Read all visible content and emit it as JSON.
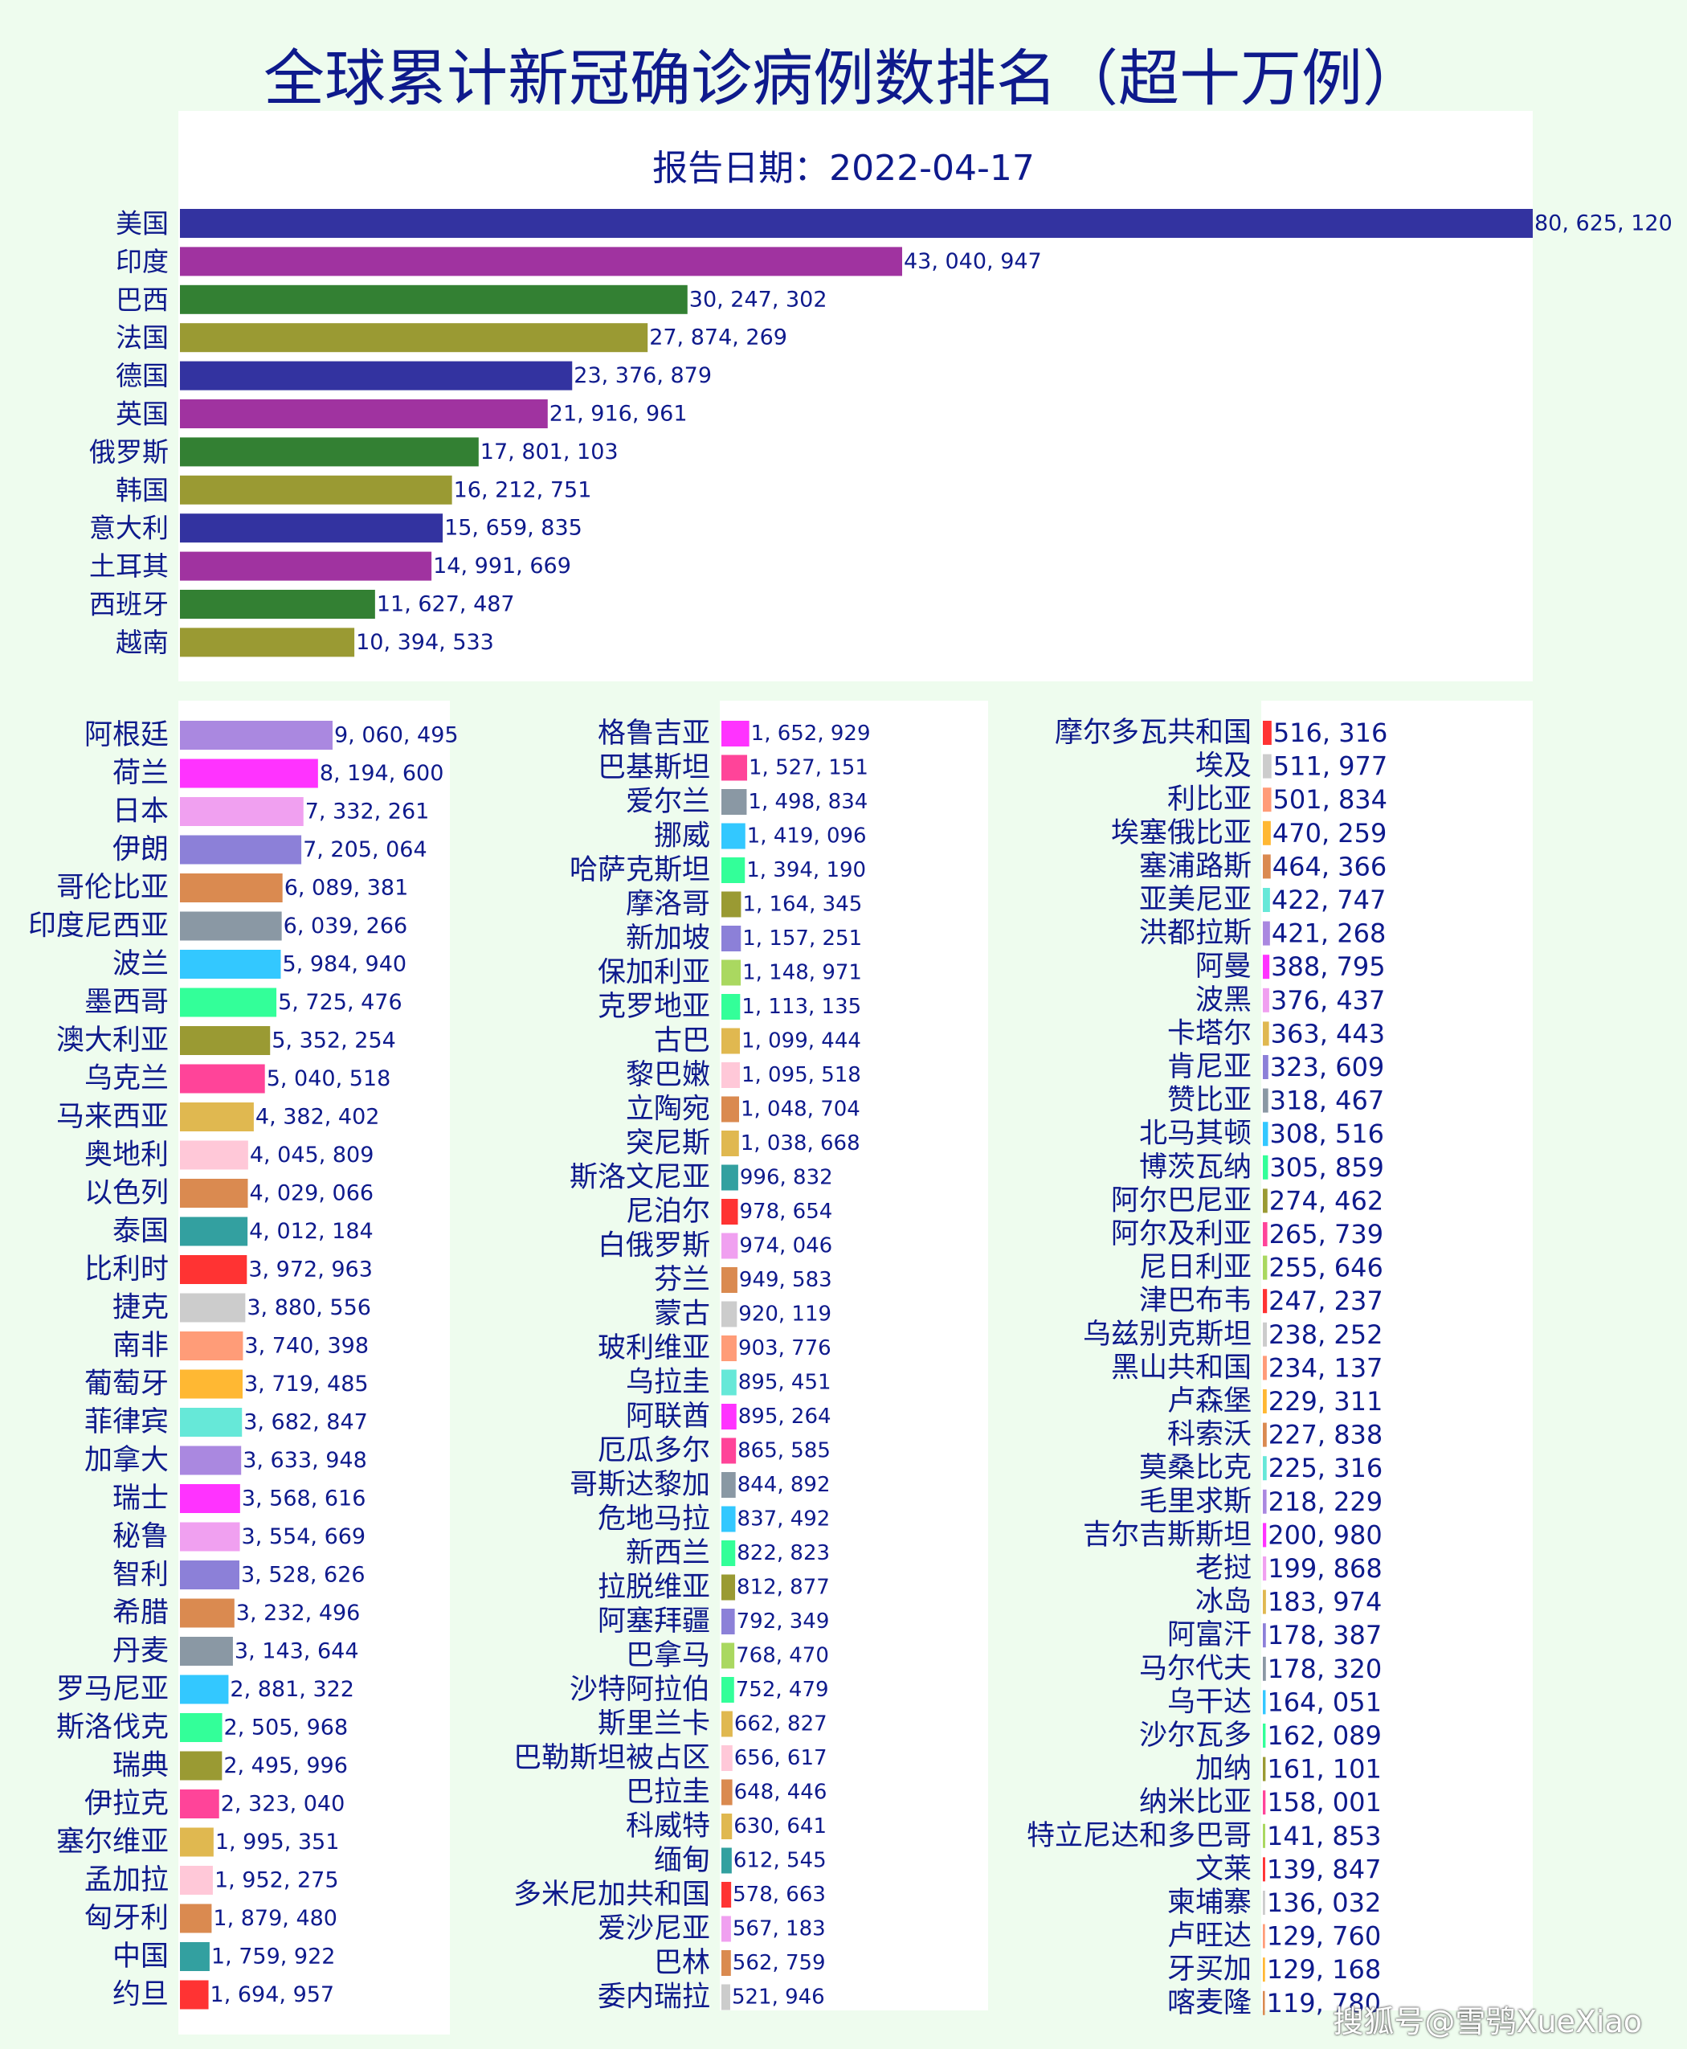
{
  "chart_data": {
    "type": "bar",
    "orientation": "horizontal",
    "title": "全球累计新冠确诊病例数排名（超十万例）",
    "subtitle": "报告日期：2022-04-17",
    "watermark": "搜狐号@雪鸮XueXiao",
    "panels": [
      {
        "name": "top",
        "xlim": [
          0,
          80625120
        ],
        "colors": [
          "#3333a0",
          "#a033a0",
          "#338033",
          "#9a9a33"
        ],
        "categories": [
          "美国",
          "印度",
          "巴西",
          "法国",
          "德国",
          "英国",
          "俄罗斯",
          "韩国",
          "意大利",
          "土耳其",
          "西班牙",
          "越南"
        ],
        "values": [
          80625120,
          43040947,
          30247302,
          27874269,
          23376879,
          21916961,
          17801103,
          16212751,
          15659835,
          14991669,
          11627487,
          10394533
        ],
        "value_labels": [
          "80, 625, 120",
          "43, 040, 947",
          "30, 247, 302",
          "27, 874, 269",
          "23, 376, 879",
          "21, 916, 961",
          "17, 801, 103",
          "16, 212, 751",
          "15, 659, 835",
          "14, 991, 669",
          "11, 627, 487",
          "10, 394, 533"
        ]
      },
      {
        "name": "left",
        "xlim": [
          0,
          9060495
        ],
        "colors": [
          "#aa88e0",
          "#ff33ff",
          "#f0a0f0",
          "#8c80d8",
          "#da8a50",
          "#8a98a4",
          "#33c8ff",
          "#33ff99",
          "#9a9a33",
          "#ff4499",
          "#e0b850",
          "#ffc8d8",
          "#da8a50",
          "#33a0a0",
          "#ff3333",
          "#cccccc",
          "#ff9c78",
          "#ffb833",
          "#66e8d8"
        ],
        "categories": [
          "阿根廷",
          "荷兰",
          "日本",
          "伊朗",
          "哥伦比亚",
          "印度尼西亚",
          "波兰",
          "墨西哥",
          "澳大利亚",
          "乌克兰",
          "马来西亚",
          "奥地利",
          "以色列",
          "泰国",
          "比利时",
          "捷克",
          "南非",
          "葡萄牙",
          "菲律宾",
          "加拿大",
          "瑞士",
          "秘鲁",
          "智利",
          "希腊",
          "丹麦",
          "罗马尼亚",
          "斯洛伐克",
          "瑞典",
          "伊拉克",
          "塞尔维亚",
          "孟加拉",
          "匈牙利",
          "中国",
          "约旦"
        ],
        "values": [
          9060495,
          8194600,
          7332261,
          7205064,
          6089381,
          6039266,
          5984940,
          5725476,
          5352254,
          5040518,
          4382402,
          4045809,
          4029066,
          4012184,
          3972963,
          3880556,
          3740398,
          3719485,
          3682847,
          3633948,
          3568616,
          3554669,
          3528626,
          3232496,
          3143644,
          2881322,
          2505968,
          2495996,
          2323040,
          1995351,
          1952275,
          1879480,
          1759922,
          1694957
        ],
        "value_labels": [
          "9, 060, 495",
          "8, 194, 600",
          "7, 332, 261",
          "7, 205, 064",
          "6, 089, 381",
          "6, 039, 266",
          "5, 984, 940",
          "5, 725, 476",
          "5, 352, 254",
          "5, 040, 518",
          "4, 382, 402",
          "4, 045, 809",
          "4, 029, 066",
          "4, 012, 184",
          "3, 972, 963",
          "3, 880, 556",
          "3, 740, 398",
          "3, 719, 485",
          "3, 682, 847",
          "3, 633, 948",
          "3, 568, 616",
          "3, 554, 669",
          "3, 528, 626",
          "3, 232, 496",
          "3, 143, 644",
          "2, 881, 322",
          "2, 505, 968",
          "2, 495, 996",
          "2, 323, 040",
          "1, 995, 351",
          "1, 952, 275",
          "1, 879, 480",
          "1, 759, 922",
          "1, 694, 957"
        ]
      },
      {
        "name": "middle",
        "xlim": [
          0,
          9060495
        ],
        "colors": [
          "#ff33ff",
          "#ff4499",
          "#8a98a4",
          "#33c8ff",
          "#33ff99",
          "#9a9a33",
          "#8c80d8",
          "#aad860",
          "#33ff99",
          "#e0b850",
          "#ffc8d8",
          "#da8a50",
          "#e0b850",
          "#33a0a0",
          "#ff3333",
          "#f0a0f0",
          "#da8a50",
          "#cccccc",
          "#ff9c78",
          "#66e8d8"
        ],
        "categories": [
          "格鲁吉亚",
          "巴基斯坦",
          "爱尔兰",
          "挪威",
          "哈萨克斯坦",
          "摩洛哥",
          "新加坡",
          "保加利亚",
          "克罗地亚",
          "古巴",
          "黎巴嫩",
          "立陶宛",
          "突尼斯",
          "斯洛文尼亚",
          "尼泊尔",
          "白俄罗斯",
          "芬兰",
          "蒙古",
          "玻利维亚",
          "乌拉圭",
          "阿联酋",
          "厄瓜多尔",
          "哥斯达黎加",
          "危地马拉",
          "新西兰",
          "拉脱维亚",
          "阿塞拜疆",
          "巴拿马",
          "沙特阿拉伯",
          "斯里兰卡",
          "巴勒斯坦被占区",
          "巴拉圭",
          "科威特",
          "缅甸",
          "多米尼加共和国",
          "爱沙尼亚",
          "巴林",
          "委内瑞拉"
        ],
        "values": [
          1652929,
          1527151,
          1498834,
          1419096,
          1394190,
          1164345,
          1157251,
          1148971,
          1113135,
          1099444,
          1095518,
          1048704,
          1038668,
          996832,
          978654,
          974046,
          949583,
          920119,
          903776,
          895451,
          895264,
          865585,
          844892,
          837492,
          822823,
          812877,
          792349,
          768470,
          752479,
          662827,
          656617,
          648446,
          630641,
          612545,
          578663,
          567183,
          562759,
          521946
        ],
        "value_labels": [
          "1, 652, 929",
          "1, 527, 151",
          "1, 498, 834",
          "1, 419, 096",
          "1, 394, 190",
          "1, 164, 345",
          "1, 157, 251",
          "1, 148, 971",
          "1, 113, 135",
          "1, 099, 444",
          "1, 095, 518",
          "1, 048, 704",
          "1, 038, 668",
          "996, 832",
          "978, 654",
          "974, 046",
          "949, 583",
          "920, 119",
          "903, 776",
          "895, 451",
          "895, 264",
          "865, 585",
          "844, 892",
          "837, 492",
          "822, 823",
          "812, 877",
          "792, 349",
          "768, 470",
          "752, 479",
          "662, 827",
          "656, 617",
          "648, 446",
          "630, 641",
          "612, 545",
          "578, 663",
          "567, 183",
          "562, 759",
          "521, 946"
        ]
      },
      {
        "name": "right",
        "xlim": [
          0,
          9060495
        ],
        "colors": [
          "#ff3333",
          "#cccccc",
          "#ff9c78",
          "#ffb833",
          "#da8a50",
          "#66e8d8",
          "#aa88e0",
          "#ff33ff",
          "#f0a0f0",
          "#e0b850",
          "#8c80d8",
          "#8a98a4",
          "#33c8ff",
          "#33ff99",
          "#9a9a33",
          "#ff4499",
          "#aad860"
        ],
        "categories": [
          "摩尔多瓦共和国",
          "埃及",
          "利比亚",
          "埃塞俄比亚",
          "塞浦路斯",
          "亚美尼亚",
          "洪都拉斯",
          "阿曼",
          "波黑",
          "卡塔尔",
          "肯尼亚",
          "赞比亚",
          "北马其顿",
          "博茨瓦纳",
          "阿尔巴尼亚",
          "阿尔及利亚",
          "尼日利亚",
          "津巴布韦",
          "乌兹别克斯坦",
          "黑山共和国",
          "卢森堡",
          "科索沃",
          "莫桑比克",
          "毛里求斯",
          "吉尔吉斯斯坦",
          "老挝",
          "冰岛",
          "阿富汗",
          "马尔代夫",
          "乌干达",
          "沙尔瓦多",
          "加纳",
          "纳米比亚",
          "特立尼达和多巴哥",
          "文莱",
          "柬埔寨",
          "卢旺达",
          "牙买加",
          "喀麦隆"
        ],
        "values": [
          516316,
          511977,
          501834,
          470259,
          464366,
          422747,
          421268,
          388795,
          376437,
          363443,
          323609,
          318467,
          308516,
          305859,
          274462,
          265739,
          255646,
          247237,
          238252,
          234137,
          229311,
          227838,
          225316,
          218229,
          200980,
          199868,
          183974,
          178387,
          178320,
          164051,
          162089,
          161101,
          158001,
          141853,
          139847,
          136032,
          129760,
          129168,
          119780
        ],
        "value_labels": [
          "516, 316",
          "511, 977",
          "501, 834",
          "470, 259",
          "464, 366",
          "422, 747",
          "421, 268",
          "388, 795",
          "376, 437",
          "363, 443",
          "323, 609",
          "318, 467",
          "308, 516",
          "305, 859",
          "274, 462",
          "265, 739",
          "255, 646",
          "247, 237",
          "238, 252",
          "234, 137",
          "229, 311",
          "227, 838",
          "225, 316",
          "218, 229",
          "200, 980",
          "199, 868",
          "183, 974",
          "178, 387",
          "178, 320",
          "164, 051",
          "162, 089",
          "161, 101",
          "158, 001",
          "141, 853",
          "139, 847",
          "136, 032",
          "129, 760",
          "129, 168",
          "119, 780"
        ]
      }
    ]
  }
}
